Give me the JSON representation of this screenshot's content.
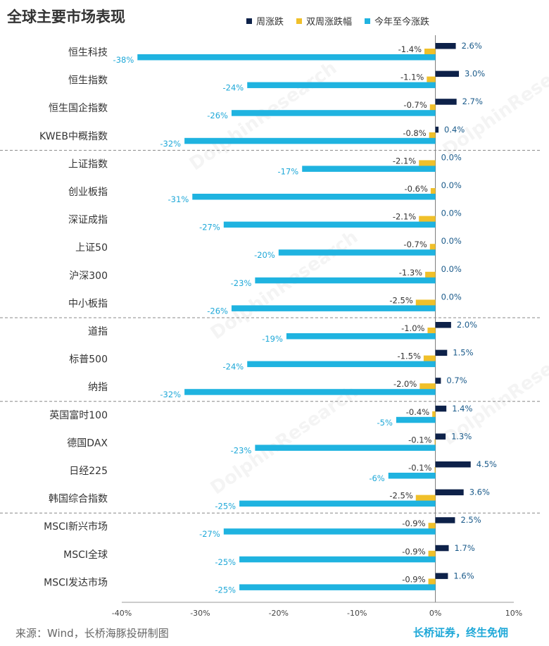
{
  "header": {
    "title": "全球主要市场表现"
  },
  "footer": {
    "source": "来源：Wind，长桥海豚投研制图",
    "slogan": "长桥证券，终生免佣"
  },
  "watermark": "DolphinResearch",
  "colors": {
    "weekly": "#0d2149",
    "biweekly": "#f0c02a",
    "ytd": "#1fb3e0",
    "grid": "#888888"
  },
  "chart_data": {
    "type": "bar",
    "orientation": "horizontal",
    "xlim": [
      -40,
      10
    ],
    "xticks": [
      "-40%",
      "-30%",
      "-20%",
      "-10%",
      "0%",
      "10%"
    ],
    "categories": [
      "恒生科技",
      "恒生指数",
      "恒生国企指数",
      "KWEB中概指数",
      "上证指数",
      "创业板指",
      "深证成指",
      "上证50",
      "沪深300",
      "中小板指",
      "道指",
      "标普500",
      "纳指",
      "英国富时100",
      "德国DAX",
      "日经225",
      "韩国综合指数",
      "MSCI新兴市场",
      "MSCI全球",
      "MSCI发达市场"
    ],
    "group_separators_after": [
      3,
      9,
      12,
      16
    ],
    "series": [
      {
        "name": "周涨跌",
        "key": "weekly",
        "values": [
          2.6,
          3.0,
          2.7,
          0.4,
          0.0,
          0.0,
          0.0,
          0.0,
          0.0,
          0.0,
          2.0,
          1.5,
          0.7,
          1.4,
          1.3,
          4.5,
          3.6,
          2.5,
          1.7,
          1.6
        ],
        "labels": [
          "2.6%",
          "3.0%",
          "2.7%",
          "0.4%",
          "0.0%",
          "0.0%",
          "0.0%",
          "0.0%",
          "0.0%",
          "0.0%",
          "2.0%",
          "1.5%",
          "0.7%",
          "1.4%",
          "1.3%",
          "4.5%",
          "3.6%",
          "2.5%",
          "1.7%",
          "1.6%"
        ]
      },
      {
        "name": "双周涨跌幅",
        "key": "biweekly",
        "values": [
          -1.4,
          -1.1,
          -0.7,
          -0.8,
          -2.1,
          -0.6,
          -2.1,
          -0.7,
          -1.3,
          -2.5,
          -1.0,
          -1.5,
          -2.0,
          -0.4,
          -0.1,
          -0.1,
          -2.5,
          -0.9,
          -0.9,
          -0.9
        ],
        "labels": [
          "-1.4%",
          "-1.1%",
          "-0.7%",
          "-0.8%",
          "-2.1%",
          "-0.6%",
          "-2.1%",
          "-0.7%",
          "-1.3%",
          "-2.5%",
          "-1.0%",
          "-1.5%",
          "-2.0%",
          "-0.4%",
          "-0.1%",
          "-0.1%",
          "-2.5%",
          "-0.9%",
          "-0.9%",
          "-0.9%"
        ]
      },
      {
        "name": "今年至今涨跌",
        "key": "ytd",
        "values": [
          -38,
          -24,
          -26,
          -32,
          -17,
          -31,
          -27,
          -20,
          -23,
          -26,
          -19,
          -24,
          -32,
          -5,
          -23,
          -6,
          -25,
          -27,
          -25,
          -25
        ],
        "labels": [
          "-38%",
          "-24%",
          "-26%",
          "-32%",
          "-17%",
          "-31%",
          "-27%",
          "-20%",
          "-23%",
          "-26%",
          "-19%",
          "-24%",
          "-32%",
          "-5%",
          "-23%",
          "-6%",
          "-25%",
          "-27%",
          "-25%",
          "-25%"
        ]
      }
    ]
  }
}
